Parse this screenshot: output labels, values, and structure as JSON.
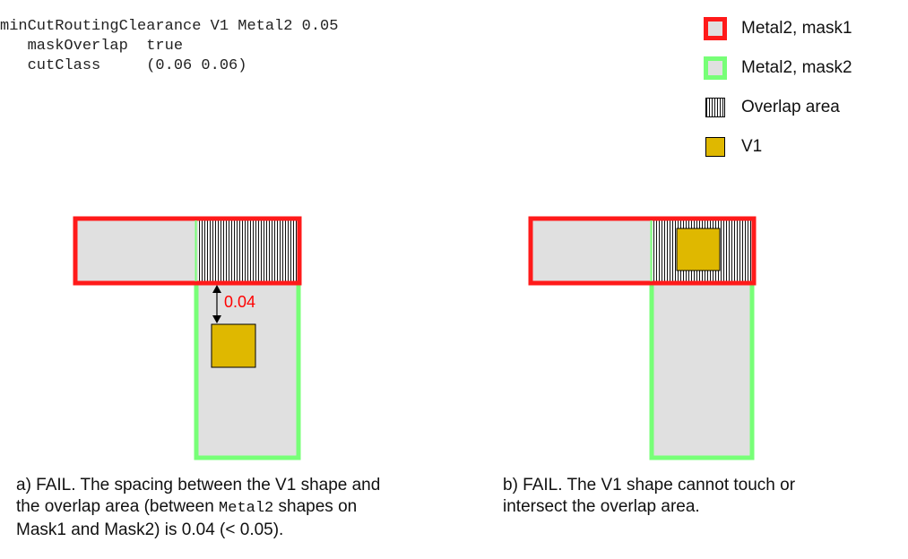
{
  "rule_text": {
    "line1": "minCutRoutingClearance V1 Metal2 0.05",
    "line2": "   maskOverlap  true",
    "line3": "   cutClass     (0.06 0.06)"
  },
  "legend": {
    "items": [
      {
        "label": "Metal2, mask1"
      },
      {
        "label": "Metal2, mask2"
      },
      {
        "label": "Overlap area"
      },
      {
        "label": "V1"
      }
    ]
  },
  "colors": {
    "mask1_border": "#ff1a1a",
    "mask2_border": "#77ff77",
    "metal_fill": "#e0e0e0",
    "via_fill": "#dfb800",
    "dimension_text": "#ff0000"
  },
  "diagram_a": {
    "dimension_label": "0.04"
  },
  "captions": {
    "a_part1": "a) FAIL. The spacing between the V1 shape and",
    "a_part2": "the overlap area (between ",
    "a_mono": "Metal2",
    "a_part3": " shapes on",
    "a_part4": "Mask1 and Mask2) is 0.04 (< 0.05).",
    "b_part1": "b) FAIL. The V1 shape cannot touch or",
    "b_part2": "intersect the overlap area."
  }
}
